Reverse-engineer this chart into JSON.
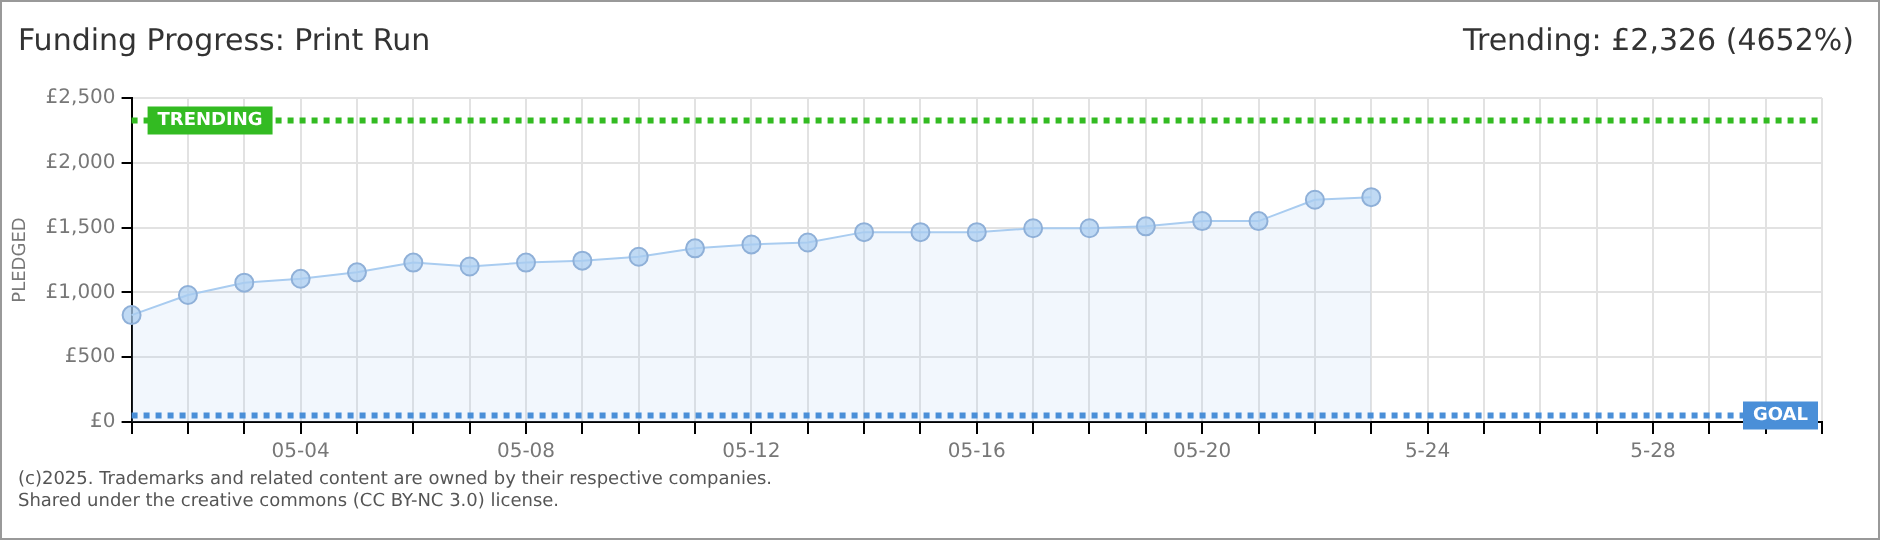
{
  "chart_data": {
    "type": "area",
    "title": "Funding Progress: Print Run",
    "subtitle": "Trending: £2,326 (4652%)",
    "ylabel": "PLEDGED",
    "categories": [
      null,
      null,
      null,
      "05-04",
      null,
      null,
      null,
      "05-08",
      null,
      null,
      null,
      "05-12",
      null,
      null,
      null,
      "05-16",
      null,
      null,
      null,
      "05-20",
      null,
      null,
      null,
      "5-24",
      null,
      null,
      null,
      "5-28",
      null,
      null,
      null
    ],
    "series": [
      {
        "color": "#a9ccf0",
        "values": [
          825,
          980,
          1075,
          1105,
          1155,
          1230,
          1200,
          1230,
          1245,
          1275,
          1340,
          1370,
          1385,
          1465,
          1465,
          1465,
          1495,
          1495,
          1510,
          1550,
          1550,
          1715,
          1735,
          null,
          null,
          null,
          null,
          null,
          null,
          null,
          null
        ]
      }
    ],
    "ylim": [
      0,
      2500
    ],
    "yticks": [
      {
        "value": 0,
        "label": "£0"
      },
      {
        "value": 500,
        "label": "£500"
      },
      {
        "value": 1000,
        "label": "£1,000"
      },
      {
        "value": 1500,
        "label": "£1,500"
      },
      {
        "value": 2000,
        "label": "£2,000"
      },
      {
        "value": 2500,
        "label": "£2,500"
      }
    ],
    "ref_lines": [
      {
        "axis": "y",
        "value": 2326,
        "label": "TRENDING",
        "color": "#33bb22",
        "line_style": "dotted"
      },
      {
        "axis": "y",
        "value": 50,
        "label": "GOAL",
        "color": "#4a8fd8",
        "line_style": "dotted"
      }
    ],
    "grid": true,
    "legend": false,
    "marker": "circle",
    "line_style": "solid",
    "annotations": [
      "(c)2025. Trademarks and related content are owned by their respective companies.",
      "Shared under the creative commons (CC BY-NC 3.0) license."
    ]
  }
}
